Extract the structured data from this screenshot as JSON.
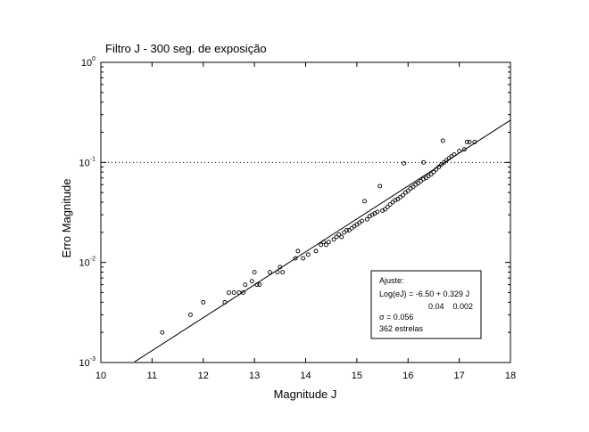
{
  "chart_data": {
    "type": "scatter",
    "title": "Filtro J - 300 seg. de exposição",
    "xlabel": "Magnitude J",
    "ylabel": "Erro Magnitude",
    "xlim": [
      10,
      18
    ],
    "ylim": [
      0.001,
      1
    ],
    "yscale": "log",
    "grid": false,
    "x_ticks": [
      10,
      11,
      12,
      13,
      14,
      15,
      16,
      17,
      18
    ],
    "y_ticks": [
      {
        "base": "10",
        "exp": "-3",
        "value": 0.001
      },
      {
        "base": "10",
        "exp": "-2",
        "value": 0.01
      },
      {
        "base": "10",
        "exp": "-1",
        "value": 0.1
      },
      {
        "base": "10",
        "exp": "0",
        "value": 1
      }
    ],
    "reference_line": {
      "y": 0.1,
      "style": "dotted"
    },
    "fit": {
      "log_intercept": -6.5,
      "slope": 0.329,
      "x_range": [
        10.66,
        18
      ]
    },
    "annotation": {
      "title": "Ajuste:",
      "equation": "Log(eJ) = -6.50 + 0.329 J",
      "errors": "0.04    0.002",
      "sigma": "σ = 0.056",
      "count": "362 estrelas",
      "position": "bottom-right"
    },
    "series": [
      {
        "points": [
          [
            11.2,
            0.002
          ],
          [
            11.75,
            0.003
          ],
          [
            12.0,
            0.004
          ],
          [
            12.42,
            0.004
          ],
          [
            12.5,
            0.005
          ],
          [
            12.6,
            0.005
          ],
          [
            12.7,
            0.005
          ],
          [
            12.78,
            0.005
          ],
          [
            12.82,
            0.006
          ],
          [
            12.95,
            0.0065
          ],
          [
            13.0,
            0.008
          ],
          [
            13.05,
            0.006
          ],
          [
            13.1,
            0.006
          ],
          [
            13.3,
            0.008
          ],
          [
            13.45,
            0.008
          ],
          [
            13.5,
            0.009
          ],
          [
            13.55,
            0.008
          ],
          [
            13.8,
            0.011
          ],
          [
            13.85,
            0.013
          ],
          [
            13.95,
            0.011
          ],
          [
            14.05,
            0.012
          ],
          [
            14.2,
            0.013
          ],
          [
            14.3,
            0.015
          ],
          [
            14.35,
            0.016
          ],
          [
            14.4,
            0.015
          ],
          [
            14.45,
            0.016
          ],
          [
            14.55,
            0.017
          ],
          [
            14.6,
            0.018
          ],
          [
            14.65,
            0.019
          ],
          [
            14.7,
            0.018
          ],
          [
            14.75,
            0.02
          ],
          [
            14.8,
            0.021
          ],
          [
            14.85,
            0.021
          ],
          [
            14.9,
            0.022
          ],
          [
            14.95,
            0.023
          ],
          [
            15.0,
            0.024
          ],
          [
            15.05,
            0.025
          ],
          [
            15.1,
            0.026
          ],
          [
            15.15,
            0.041
          ],
          [
            15.2,
            0.027
          ],
          [
            15.25,
            0.029
          ],
          [
            15.3,
            0.03
          ],
          [
            15.35,
            0.031
          ],
          [
            15.4,
            0.032
          ],
          [
            15.45,
            0.058
          ],
          [
            15.5,
            0.033
          ],
          [
            15.55,
            0.034
          ],
          [
            15.6,
            0.036
          ],
          [
            15.65,
            0.038
          ],
          [
            15.7,
            0.04
          ],
          [
            15.75,
            0.042
          ],
          [
            15.8,
            0.043
          ],
          [
            15.85,
            0.045
          ],
          [
            15.9,
            0.047
          ],
          [
            15.95,
            0.05
          ],
          [
            16.0,
            0.052
          ],
          [
            16.05,
            0.055
          ],
          [
            16.1,
            0.057
          ],
          [
            15.92,
            0.098
          ],
          [
            16.15,
            0.06
          ],
          [
            16.2,
            0.062
          ],
          [
            16.25,
            0.065
          ],
          [
            16.3,
            0.068
          ],
          [
            16.3,
            0.1
          ],
          [
            16.35,
            0.07
          ],
          [
            16.4,
            0.073
          ],
          [
            16.45,
            0.076
          ],
          [
            16.5,
            0.08
          ],
          [
            16.55,
            0.085
          ],
          [
            16.6,
            0.09
          ],
          [
            16.65,
            0.095
          ],
          [
            16.7,
            0.1
          ],
          [
            16.68,
            0.165
          ],
          [
            16.75,
            0.105
          ],
          [
            16.8,
            0.11
          ],
          [
            16.85,
            0.115
          ],
          [
            16.9,
            0.12
          ],
          [
            17.0,
            0.13
          ],
          [
            17.1,
            0.135
          ],
          [
            17.15,
            0.16
          ],
          [
            17.2,
            0.16
          ],
          [
            17.3,
            0.16
          ]
        ]
      }
    ]
  }
}
